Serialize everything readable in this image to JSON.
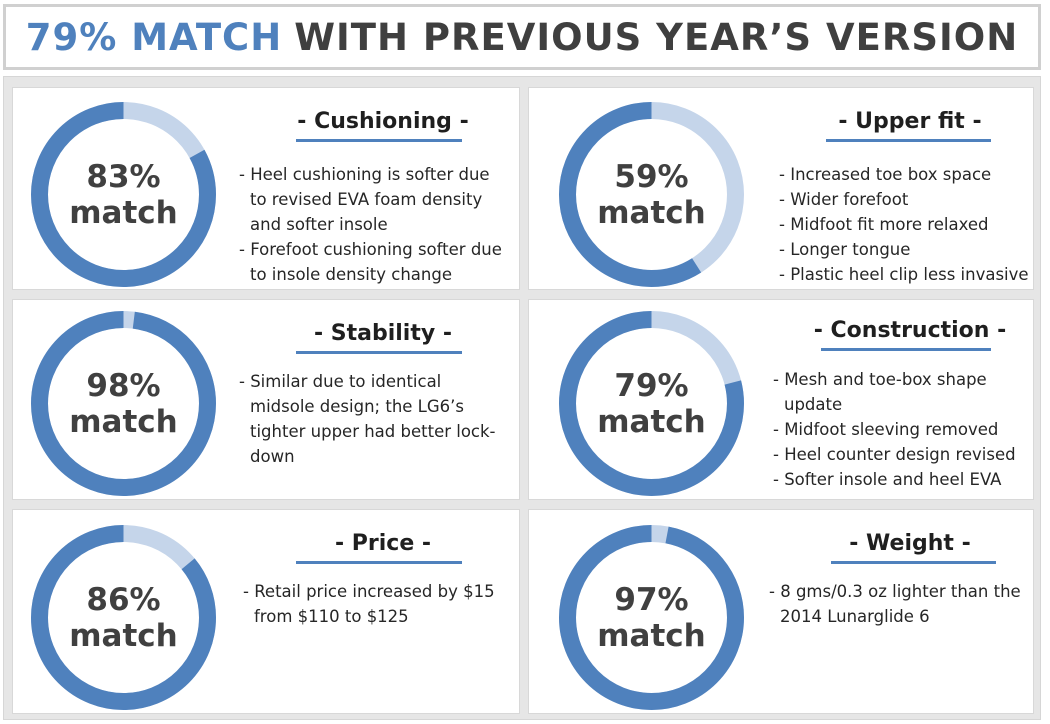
{
  "title": {
    "accent": "79% MATCH",
    "rest": "WITH PREVIOUS YEAR’S VERSION"
  },
  "colors": {
    "primary": "#4f81bd",
    "secondary": "#c5d5ea",
    "title_text": "#3f3f3f"
  },
  "cards": [
    {
      "heading": "- Cushioning -",
      "percent_label": "83%",
      "match_label": "match",
      "match_value": 83,
      "bullets": [
        "- Heel cushioning is softer due to revised EVA foam density and softer insole",
        "- Forefoot cushioning softer due to insole density change"
      ]
    },
    {
      "heading": "- Upper fit -",
      "percent_label": "59%",
      "match_label": "match",
      "match_value": 59,
      "bullets": [
        "- Increased toe box space",
        "- Wider forefoot",
        "- Midfoot fit more relaxed",
        "- Longer tongue",
        "- Plastic heel clip less invasive"
      ]
    },
    {
      "heading": "- Stability -",
      "percent_label": "98%",
      "match_label": "match",
      "match_value": 98,
      "bullets": [
        "- Similar due to identical midsole design; the LG6’s tighter upper had better lock-down"
      ]
    },
    {
      "heading": "- Construction -",
      "percent_label": "79%",
      "match_label": "match",
      "match_value": 79,
      "bullets": [
        "- Mesh and toe-box shape update",
        "- Midfoot sleeving removed",
        "- Heel counter design revised",
        "- Softer insole and heel EVA"
      ]
    },
    {
      "heading": "- Price -",
      "percent_label": "86%",
      "match_label": "match",
      "match_value": 86,
      "bullets": [
        "-  Retail price increased by $15 from $110 to $125"
      ]
    },
    {
      "heading": "- Weight -",
      "percent_label": "97%",
      "match_label": "match",
      "match_value": 97,
      "bullets": [
        "- 8 gms/0.3 oz lighter than the 2014 Lunarglide 6"
      ]
    }
  ]
}
